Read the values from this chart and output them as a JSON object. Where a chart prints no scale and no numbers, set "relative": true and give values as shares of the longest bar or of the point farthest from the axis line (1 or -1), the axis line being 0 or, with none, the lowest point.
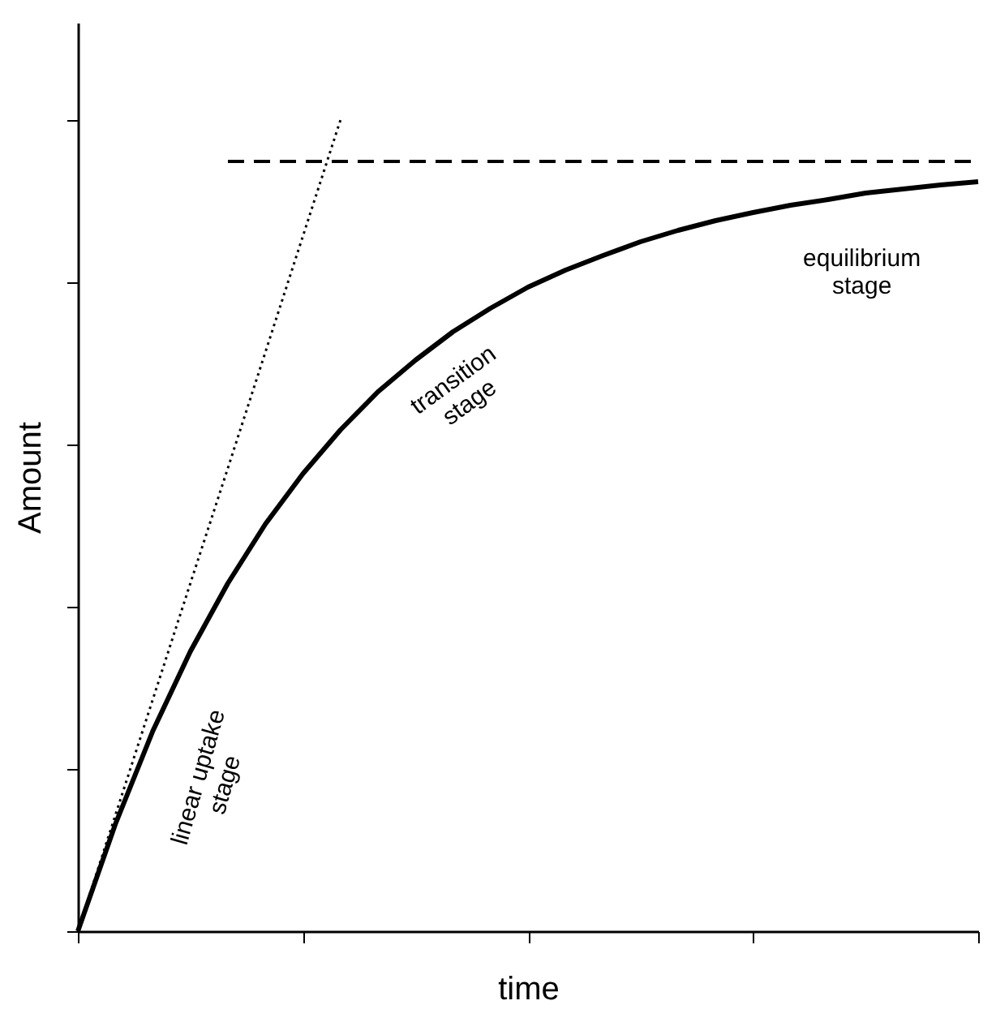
{
  "chart_data": {
    "type": "line",
    "relative": true,
    "xlabel": "time",
    "ylabel": "Amount",
    "grid": false,
    "marker": "none",
    "categories": [
      null,
      null,
      null,
      null,
      null,
      null,
      null,
      null,
      null,
      null,
      null,
      null,
      null,
      null,
      null,
      null,
      null,
      null,
      null,
      null,
      null,
      null,
      null,
      null,
      null
    ],
    "series": [
      {
        "color": "#000000",
        "line_style": "solid",
        "values": [
          0,
          0.132,
          0.247,
          0.345,
          0.429,
          0.502,
          0.564,
          0.618,
          0.665,
          0.704,
          0.739,
          0.768,
          0.794,
          0.815,
          0.833,
          0.85,
          0.864,
          0.876,
          0.886,
          0.895,
          0.902,
          0.91,
          0.915,
          0.92,
          0.924
        ]
      },
      {
        "color": "#000000",
        "line_style": "dotted",
        "values": [
          0,
          0.143,
          0.286,
          0.429,
          0.571,
          0.714,
          0.857,
          1,
          null,
          null,
          null,
          null,
          null,
          null,
          null,
          null,
          null,
          null,
          null,
          null,
          null,
          null,
          null,
          null,
          null
        ]
      },
      {
        "color": "#000000",
        "line_style": "dashed",
        "values": [
          null,
          null,
          null,
          null,
          0.949,
          0.949,
          0.949,
          0.949,
          0.949,
          0.949,
          0.949,
          0.949,
          0.949,
          0.949,
          0.949,
          0.949,
          0.949,
          0.949,
          0.949,
          0.949,
          0.949,
          0.949,
          0.949,
          0.949,
          0.949
        ]
      }
    ],
    "annotations": [
      "linear uptake\nstage",
      "transition\nstage",
      "equilibrium\nstage"
    ]
  }
}
